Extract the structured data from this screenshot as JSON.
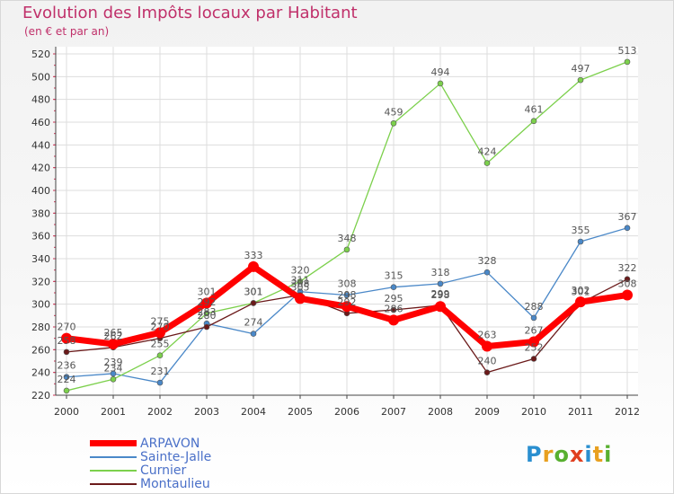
{
  "chart_data": {
    "type": "line",
    "title": "Evolution des Impôts locaux par Habitant",
    "subtitle": "(en € et par an)",
    "xlabel": "",
    "ylabel": "",
    "categories": [
      "2000",
      "2001",
      "2002",
      "2003",
      "2004",
      "2005",
      "2006",
      "2007",
      "2008",
      "2009",
      "2010",
      "2011",
      "2012"
    ],
    "ylim": [
      220,
      520
    ],
    "yticks": [
      220,
      240,
      260,
      280,
      300,
      320,
      340,
      360,
      380,
      400,
      420,
      440,
      460,
      480,
      500,
      520
    ],
    "grid": true,
    "legend_position": "bottom-left",
    "series": [
      {
        "name": "Sainte-Jalle",
        "color": "#4a88c8",
        "values": [
          236,
          239,
          231,
          283,
          274,
          311,
          308,
          315,
          318,
          328,
          288,
          355,
          367
        ]
      },
      {
        "name": "Curnier",
        "color": "#7cd04c",
        "values": [
          224,
          234,
          255,
          292,
          301,
          320,
          348,
          459,
          494,
          424,
          461,
          497,
          513
        ]
      },
      {
        "name": "Montaulieu",
        "color": "#6b1a1a",
        "values": [
          258,
          262,
          270,
          280,
          301,
          308,
          292,
          295,
          299,
          240,
          252,
          301,
          322
        ]
      },
      {
        "name": "ARPAVON",
        "color": "#ff0000",
        "values": [
          270,
          265,
          275,
          301,
          333,
          305,
          298,
          286,
          298,
          263,
          267,
          302,
          308
        ]
      }
    ],
    "legend": [
      {
        "name": "ARPAVON",
        "color": "#ff0000"
      },
      {
        "name": "Sainte-Jalle",
        "color": "#4a88c8"
      },
      {
        "name": "Curnier",
        "color": "#7cd04c"
      },
      {
        "name": "Montaulieu",
        "color": "#6b1a1a"
      }
    ]
  },
  "brand": {
    "letters": [
      {
        "ch": "P",
        "color": "#2a8fd0"
      },
      {
        "ch": "r",
        "color": "#e8a020"
      },
      {
        "ch": "o",
        "color": "#58b030"
      },
      {
        "ch": "x",
        "color": "#e04020"
      },
      {
        "ch": "i",
        "color": "#2a8fd0"
      },
      {
        "ch": "t",
        "color": "#e8a020"
      },
      {
        "ch": "i",
        "color": "#58b030"
      }
    ]
  }
}
